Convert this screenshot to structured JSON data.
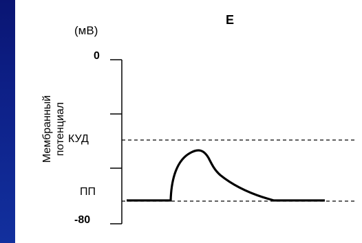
{
  "diagram": {
    "title": "E",
    "y_unit": "(мВ)",
    "y_axis_label_lines": [
      "Мембранный",
      "потенциал"
    ],
    "tick_top": "0",
    "tick_bottom": "-80",
    "threshold_label": "КУД",
    "resting_label": "ПП",
    "colors": {
      "background": "#0b1a7a",
      "panel": "#ffffff",
      "ink": "#000000"
    }
  }
}
